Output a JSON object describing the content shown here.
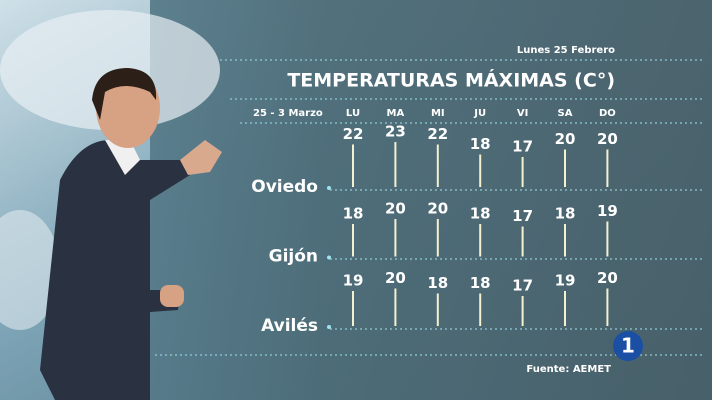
{
  "header": {
    "date": "Lunes 25 Febrero",
    "title": "TEMPERATURAS MÁXIMAS (C°)",
    "period": "25 - 3 Marzo"
  },
  "days": [
    "LU",
    "MA",
    "MI",
    "JU",
    "VI",
    "SA",
    "DO"
  ],
  "rows": [
    {
      "city": "Oviedo",
      "values": [
        22,
        23,
        22,
        18,
        17,
        20,
        20
      ]
    },
    {
      "city": "Gijón",
      "values": [
        18,
        20,
        20,
        18,
        17,
        18,
        19
      ]
    },
    {
      "city": "Avilés",
      "values": [
        19,
        20,
        18,
        18,
        17,
        19,
        20
      ]
    }
  ],
  "footer": {
    "source": "Fuente: AEMET",
    "logo": "1"
  }
}
